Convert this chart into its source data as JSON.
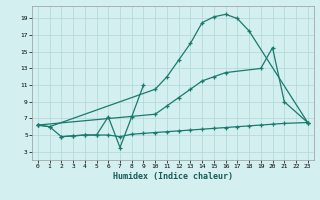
{
  "xlabel": "Humidex (Indice chaleur)",
  "background_color": "#d4efef",
  "grid_color": "#afd8d8",
  "line_color": "#1a7a6e",
  "xlim": [
    -0.5,
    23.5
  ],
  "ylim": [
    2.0,
    20.5
  ],
  "yticks": [
    3,
    5,
    7,
    9,
    11,
    13,
    15,
    17,
    19
  ],
  "xticks": [
    0,
    1,
    2,
    3,
    4,
    5,
    6,
    7,
    8,
    9,
    10,
    11,
    12,
    13,
    14,
    15,
    16,
    17,
    18,
    19,
    20,
    21,
    22,
    23
  ],
  "curves": [
    {
      "x": [
        0,
        1,
        10,
        11,
        12,
        13,
        14,
        15,
        16,
        17,
        18,
        23
      ],
      "y": [
        6.2,
        6.0,
        10.5,
        12.0,
        14.0,
        16.0,
        18.5,
        19.2,
        19.5,
        19.0,
        17.5,
        6.5
      ]
    },
    {
      "x": [
        0,
        10,
        11,
        12,
        13,
        14,
        15,
        16,
        19,
        20,
        21,
        23
      ],
      "y": [
        6.2,
        7.5,
        8.5,
        9.5,
        10.5,
        11.5,
        12.0,
        12.5,
        13.0,
        15.5,
        9.0,
        6.5
      ]
    },
    {
      "x": [
        0,
        1,
        2,
        3,
        4,
        5,
        6,
        7,
        8,
        9,
        10,
        11,
        12,
        13,
        14,
        15,
        16,
        17,
        18,
        19,
        20,
        21,
        23
      ],
      "y": [
        6.2,
        6.0,
        4.8,
        4.9,
        5.0,
        5.0,
        5.0,
        4.8,
        5.1,
        5.2,
        5.3,
        5.4,
        5.5,
        5.6,
        5.7,
        5.8,
        5.9,
        6.0,
        6.1,
        6.2,
        6.3,
        6.4,
        6.5
      ]
    },
    {
      "x": [
        2,
        3,
        4,
        5,
        6,
        7,
        8,
        9
      ],
      "y": [
        4.8,
        4.9,
        5.0,
        5.0,
        7.2,
        3.5,
        7.2,
        11.0
      ]
    }
  ]
}
